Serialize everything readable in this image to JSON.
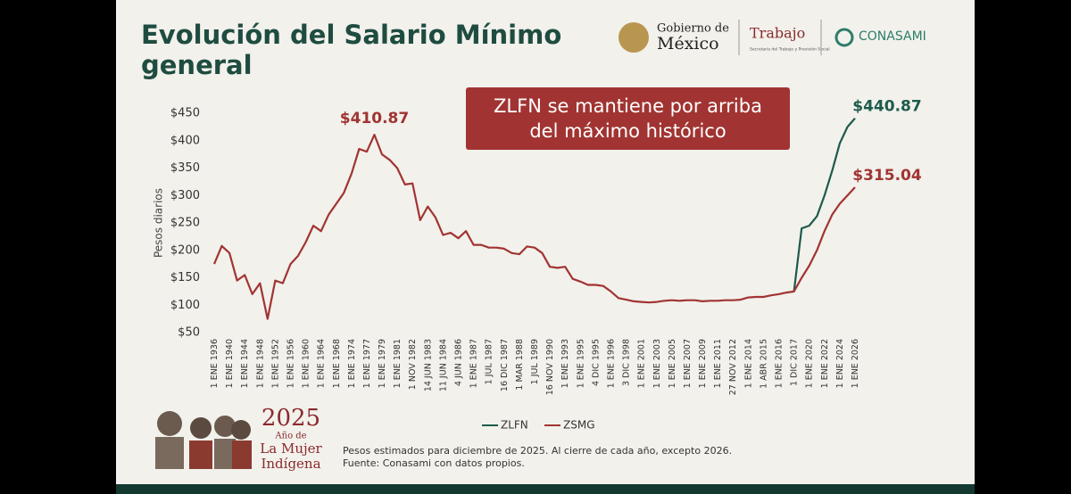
{
  "header": {
    "title": "Evolución del Salario Mínimo general",
    "gov_line1": "Gobierno de",
    "gov_line2": "México",
    "trabajo": "Trabajo",
    "trabajo_sub": "Secretaría del Trabajo y Previsión Social",
    "conasami": "CONASAMI"
  },
  "branding": {
    "year": "2025",
    "line1": "Año de",
    "line2": "La Mujer",
    "line3": "Indígena"
  },
  "footnotes": [
    "Pesos estimados para diciembre de 2025. Al cierre de cada año, excepto 2026.",
    "Fuente: Conasami con datos propios."
  ],
  "chart_data": {
    "type": "line",
    "ylabel": "Pesos diarios",
    "annotation": "ZLFN se mantiene por arriba del máximo histórico",
    "grid": false,
    "legend": "bottom",
    "categories": [
      "1 ENE 1936",
      null,
      "1 ENE 1940",
      null,
      "1 ENE 1944",
      null,
      "1 ENE 1948",
      null,
      "1 ENE 1952",
      null,
      "1 ENE 1956",
      null,
      "1 ENE 1960",
      null,
      "1 ENE 1964",
      null,
      "1 ENE 1968",
      null,
      "1 ENE 1974",
      null,
      "1 ENE 1977",
      null,
      "1 ENE 1979",
      null,
      "1 ENE 1981",
      null,
      "1 NOV 1982",
      null,
      "14 JUN 1983",
      null,
      "11 JUN 1984",
      null,
      "4 JUN 1986",
      null,
      "1 ENE 1987",
      null,
      "1 JUL 1987",
      null,
      "16 DIC 1987",
      null,
      "1 MAR 1988",
      null,
      "1 JUL 1989",
      null,
      "16 NOV 1990",
      null,
      "1 ENE 1993",
      null,
      "1 ENE 1995",
      null,
      "4 DIC 1995",
      null,
      "1 ENE 1996",
      null,
      "3 DIC 1998",
      null,
      "1 ENE 2001",
      null,
      "1 ENE 2003",
      null,
      "1 ENE 2005",
      null,
      "1 ENE 2007",
      null,
      "1 ENE 2009",
      null,
      "1 ENE 2011",
      null,
      "27 NOV 2012",
      null,
      "1 ENE 2014",
      null,
      "1 ABR 2015",
      null,
      "1 ENE 2016",
      null,
      "1 DIC 2017",
      null,
      "1 ENE 2020",
      null,
      "1 ENE 2022",
      null,
      "1 ENE 2024",
      null,
      "1 ENE 2026"
    ],
    "ylim": [
      50,
      450
    ],
    "yticks": [
      {
        "value": 50,
        "label": "$50"
      },
      {
        "value": 100,
        "label": "$100"
      },
      {
        "value": 150,
        "label": "$150"
      },
      {
        "value": 200,
        "label": "$200"
      },
      {
        "value": 250,
        "label": "$250"
      },
      {
        "value": 300,
        "label": "$300"
      },
      {
        "value": 350,
        "label": "$350"
      },
      {
        "value": 400,
        "label": "$400"
      },
      {
        "value": 450,
        "label": "$450"
      }
    ],
    "series": [
      {
        "name": "ZLFN",
        "color": "#1d5a4b",
        "values": [
          null,
          null,
          null,
          null,
          null,
          null,
          null,
          null,
          null,
          null,
          null,
          null,
          null,
          null,
          null,
          null,
          null,
          null,
          null,
          null,
          null,
          null,
          null,
          null,
          null,
          null,
          null,
          null,
          null,
          null,
          null,
          null,
          null,
          null,
          null,
          null,
          null,
          null,
          null,
          null,
          null,
          null,
          null,
          null,
          null,
          null,
          null,
          null,
          null,
          null,
          null,
          null,
          null,
          null,
          null,
          null,
          null,
          null,
          null,
          null,
          null,
          null,
          null,
          null,
          null,
          null,
          null,
          null,
          null,
          null,
          null,
          null,
          null,
          null,
          null,
          null,
          125,
          240,
          245,
          262,
          300,
          345,
          395,
          425,
          440.87
        ],
        "value_labels": [
          null,
          null,
          null,
          null,
          null,
          null,
          null,
          null,
          null,
          null,
          null,
          null,
          null,
          null,
          null,
          null,
          null,
          null,
          null,
          null,
          null,
          null,
          null,
          null,
          null,
          null,
          null,
          null,
          null,
          null,
          null,
          null,
          null,
          null,
          null,
          null,
          null,
          null,
          null,
          null,
          null,
          null,
          null,
          null,
          null,
          null,
          null,
          null,
          null,
          null,
          null,
          null,
          null,
          null,
          null,
          null,
          null,
          null,
          null,
          null,
          null,
          null,
          null,
          null,
          null,
          null,
          null,
          null,
          null,
          null,
          null,
          null,
          null,
          null,
          null,
          null,
          null,
          null,
          null,
          null,
          null,
          null,
          null,
          null,
          "$440.87"
        ]
      },
      {
        "name": "ZSMG",
        "color": "#a13432",
        "values": [
          175,
          208,
          195,
          145,
          155,
          120,
          140,
          75,
          145,
          140,
          175,
          190,
          215,
          245,
          235,
          265,
          285,
          305,
          340,
          385,
          380,
          410.87,
          375,
          365,
          350,
          320,
          322,
          255,
          280,
          260,
          228,
          232,
          222,
          235,
          210,
          210,
          205,
          205,
          203,
          195,
          193,
          207,
          205,
          195,
          170,
          168,
          170,
          148,
          143,
          137,
          137,
          135,
          125,
          113,
          110,
          107,
          106,
          105,
          106,
          108,
          109,
          108,
          109,
          109,
          107,
          108,
          108,
          109,
          109,
          110,
          114,
          115,
          115,
          118,
          120,
          123,
          125,
          150,
          172,
          200,
          235,
          265,
          285,
          300,
          315.04
        ],
        "value_labels": [
          null,
          null,
          null,
          null,
          null,
          null,
          null,
          null,
          null,
          null,
          null,
          null,
          null,
          null,
          null,
          null,
          null,
          null,
          null,
          null,
          null,
          "$410.87",
          null,
          null,
          null,
          null,
          null,
          null,
          null,
          null,
          null,
          null,
          null,
          null,
          null,
          null,
          null,
          null,
          null,
          null,
          null,
          null,
          null,
          null,
          null,
          null,
          null,
          null,
          null,
          null,
          null,
          null,
          null,
          null,
          null,
          null,
          null,
          null,
          null,
          null,
          null,
          null,
          null,
          null,
          null,
          null,
          null,
          null,
          null,
          null,
          null,
          null,
          null,
          null,
          null,
          null,
          null,
          null,
          null,
          null,
          null,
          null,
          null,
          null,
          "$315.04"
        ]
      }
    ]
  }
}
